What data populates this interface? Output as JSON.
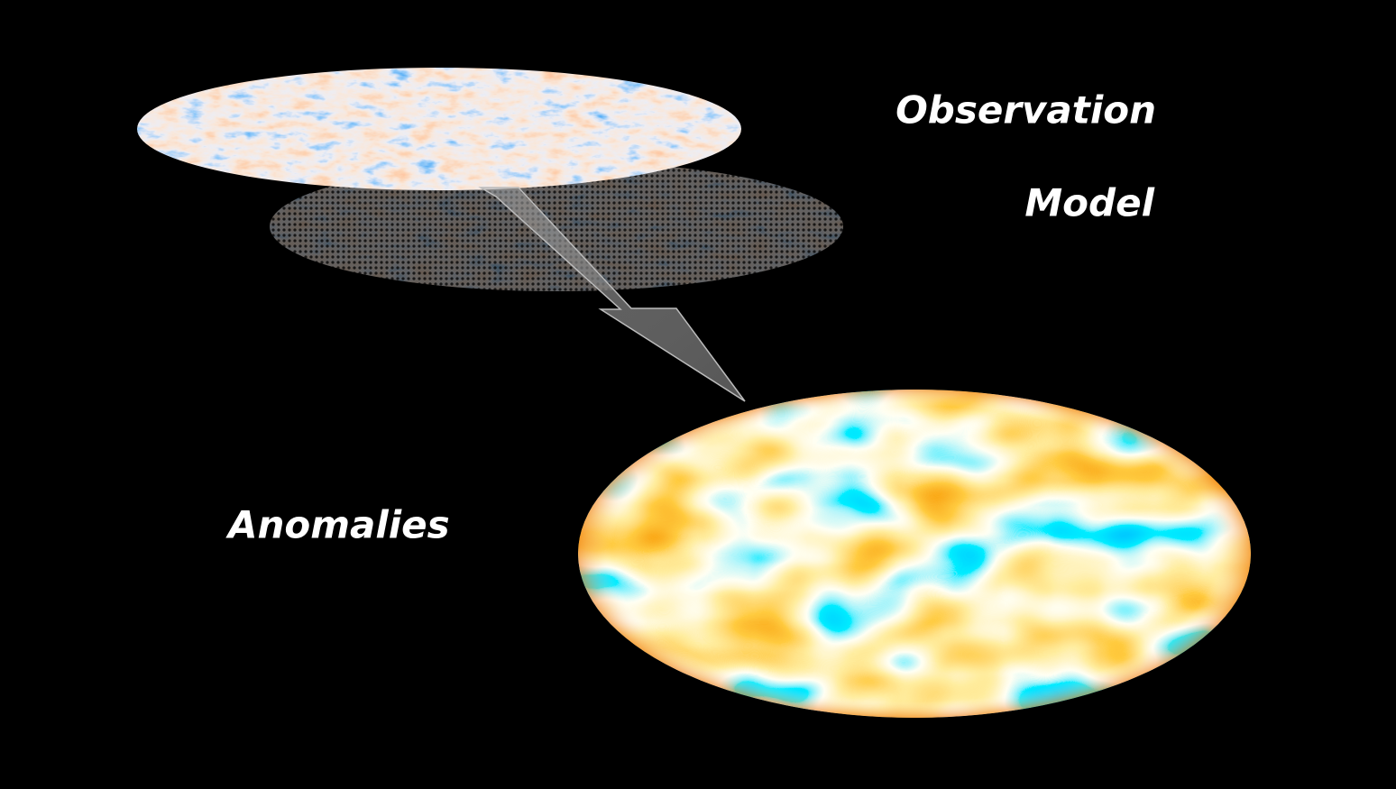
{
  "labels": {
    "observation": "Observation",
    "model": "Model",
    "anomalies": "Anomalies"
  }
}
